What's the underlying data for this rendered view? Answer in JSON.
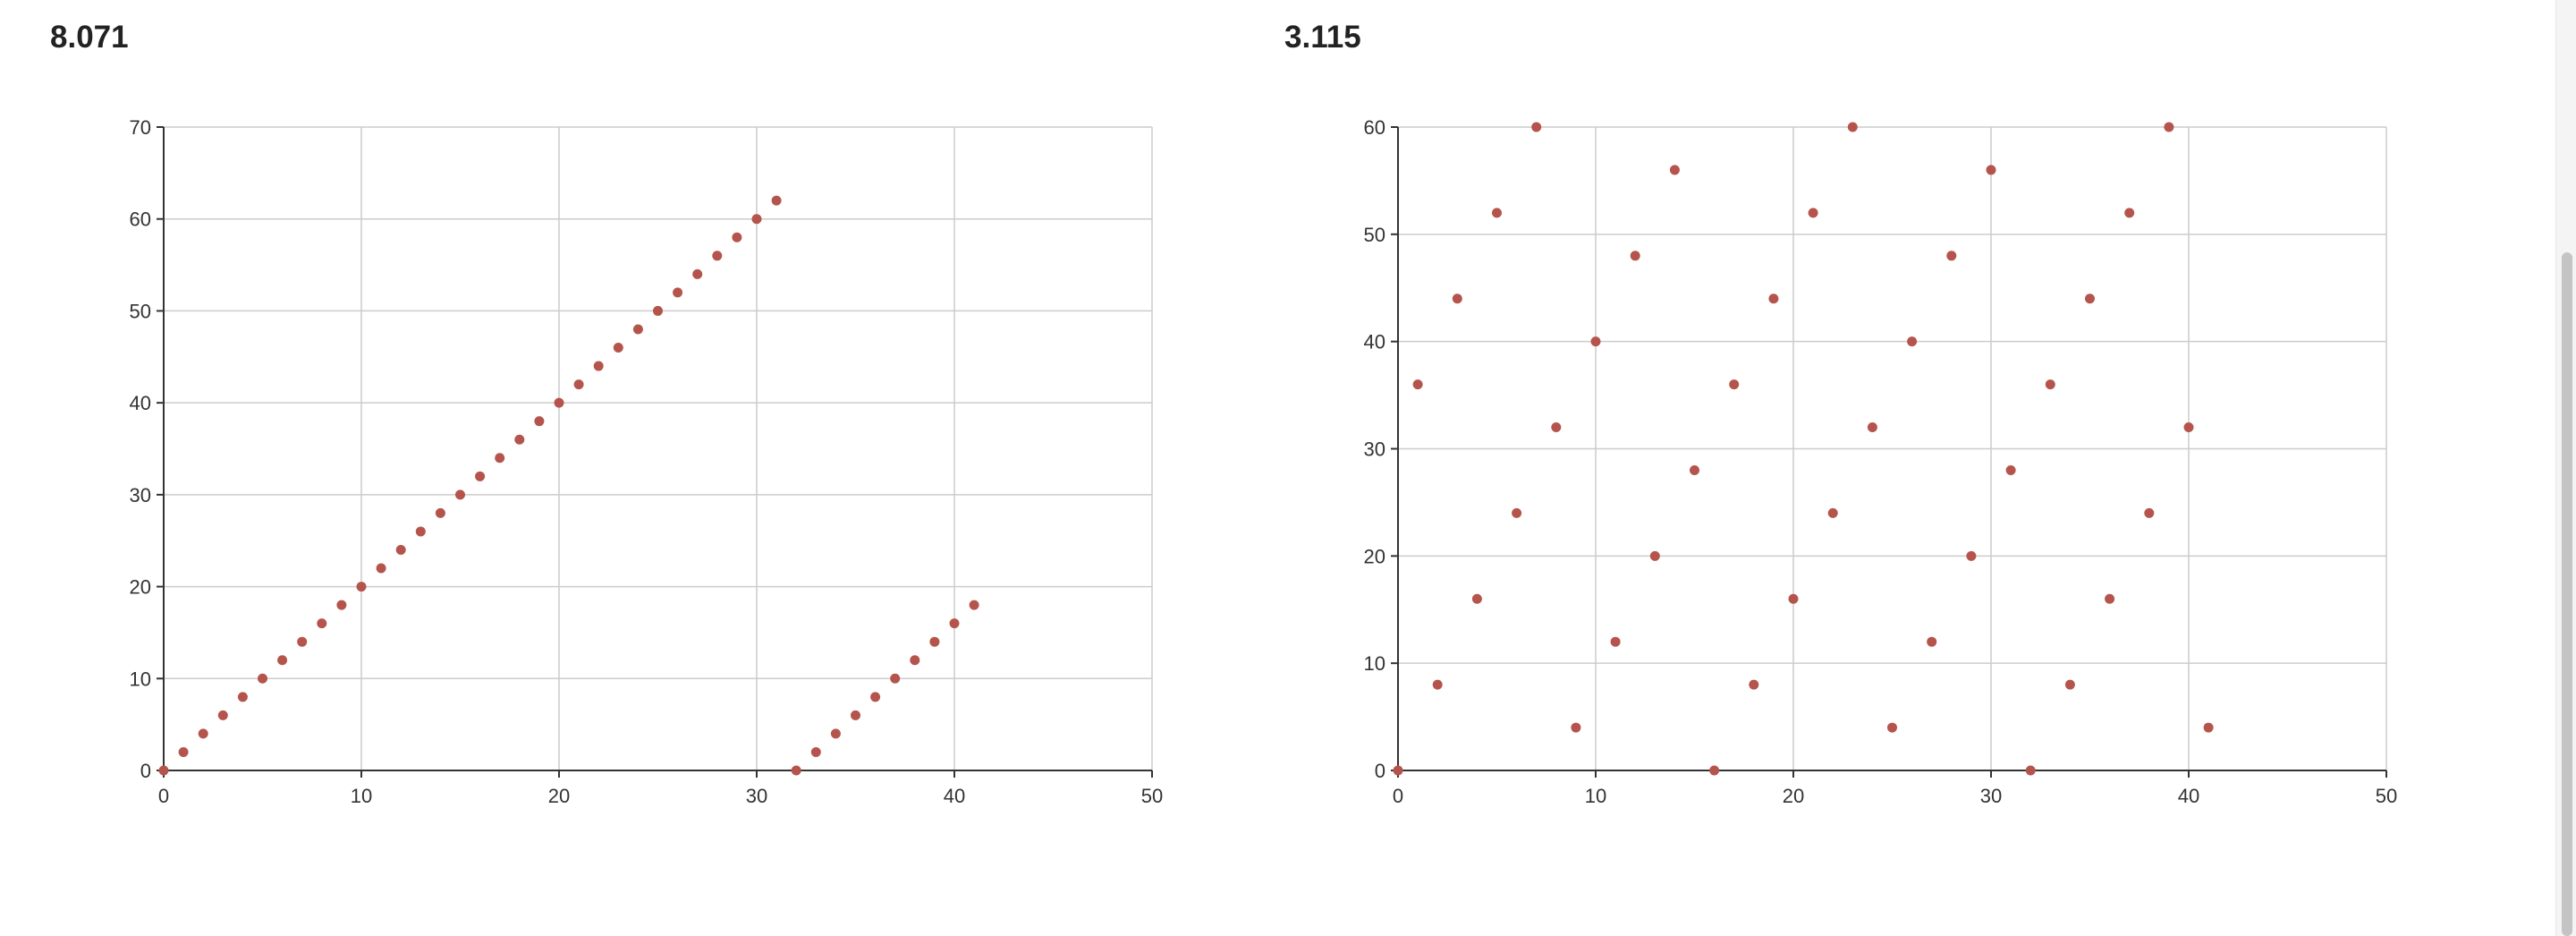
{
  "charts": [
    {
      "title": "8.071",
      "chart_data": {
        "type": "scatter",
        "title": "8.071",
        "xlabel": "",
        "ylabel": "",
        "xlim": [
          0,
          50
        ],
        "ylim": [
          0,
          70
        ],
        "x_ticks": [
          0,
          10,
          20,
          30,
          40,
          50
        ],
        "y_ticks": [
          0,
          10,
          20,
          30,
          40,
          50,
          60,
          70
        ],
        "grid": true,
        "color": "#b5544c",
        "x": [
          0,
          1,
          2,
          3,
          4,
          5,
          6,
          7,
          8,
          9,
          10,
          11,
          12,
          13,
          14,
          15,
          16,
          17,
          18,
          19,
          20,
          21,
          22,
          23,
          24,
          25,
          26,
          27,
          28,
          29,
          30,
          31,
          32,
          33,
          34,
          35,
          36,
          37,
          38,
          39,
          40,
          41
        ],
        "y": [
          0,
          2,
          4,
          6,
          8,
          10,
          12,
          14,
          16,
          18,
          20,
          22,
          24,
          26,
          28,
          30,
          32,
          34,
          36,
          38,
          40,
          42,
          44,
          46,
          48,
          50,
          52,
          54,
          56,
          58,
          60,
          62,
          0,
          2,
          4,
          6,
          8,
          10,
          12,
          14,
          16,
          18
        ]
      }
    },
    {
      "title": "3.115",
      "chart_data": {
        "type": "scatter",
        "title": "3.115",
        "xlabel": "",
        "ylabel": "",
        "xlim": [
          0,
          50
        ],
        "ylim": [
          0,
          60
        ],
        "x_ticks": [
          0,
          10,
          20,
          30,
          40,
          50
        ],
        "y_ticks": [
          0,
          10,
          20,
          30,
          40,
          50,
          60
        ],
        "grid": true,
        "color": "#b5544c",
        "x": [
          0,
          1,
          2,
          3,
          4,
          5,
          6,
          7,
          8,
          9,
          10,
          11,
          12,
          13,
          14,
          15,
          16,
          17,
          18,
          19,
          20,
          21,
          22,
          23,
          24,
          25,
          26,
          27,
          28,
          29,
          30,
          31,
          32,
          33,
          34,
          35,
          36,
          37,
          38,
          39,
          40,
          41
        ],
        "y": [
          0,
          36,
          8,
          44,
          16,
          52,
          24,
          60,
          32,
          4,
          40,
          12,
          48,
          20,
          56,
          28,
          0,
          36,
          8,
          44,
          16,
          52,
          24,
          60,
          32,
          4,
          40,
          12,
          48,
          20,
          56,
          28,
          0,
          36,
          8,
          44,
          16,
          52,
          24,
          60,
          32,
          4
        ]
      }
    }
  ]
}
